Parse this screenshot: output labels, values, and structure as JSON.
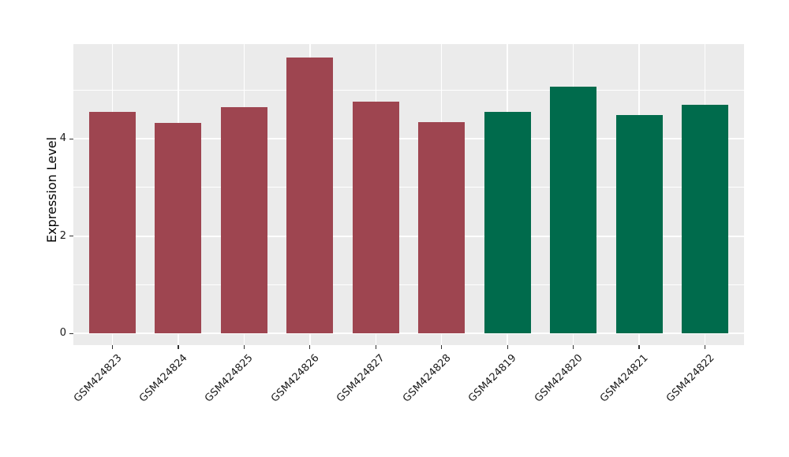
{
  "chart_data": {
    "type": "bar",
    "title": "",
    "xlabel": "",
    "ylabel": "Expression Level",
    "categories": [
      "GSM424823",
      "GSM424824",
      "GSM424825",
      "GSM424826",
      "GSM424827",
      "GSM424828",
      "GSM424819",
      "GSM424820",
      "GSM424821",
      "GSM424822"
    ],
    "values": [
      4.55,
      4.32,
      4.65,
      5.67,
      4.76,
      4.34,
      4.55,
      5.07,
      4.49,
      4.7
    ],
    "bar_colors": [
      "#9e4550",
      "#9e4550",
      "#9e4550",
      "#9e4550",
      "#9e4550",
      "#9e4550",
      "#006b4c",
      "#006b4c",
      "#006b4c",
      "#006b4c"
    ],
    "groups": [
      {
        "color": "#9e4550",
        "members": [
          "GSM424823",
          "GSM424824",
          "GSM424825",
          "GSM424826",
          "GSM424827",
          "GSM424828"
        ]
      },
      {
        "color": "#006b4c",
        "members": [
          "GSM424819",
          "GSM424820",
          "GSM424821",
          "GSM424822"
        ]
      }
    ],
    "yticks": [
      0,
      2,
      4
    ],
    "yticks_minor": [
      1,
      3,
      5
    ],
    "ylim": [
      0,
      5.94
    ],
    "x_tick_rotation": -45,
    "legend": "none",
    "grid": "on",
    "panel_background": "#ebebeb",
    "grid_color": "#ffffff",
    "figure_background": "#ffffff",
    "tick_color": "#333333",
    "text_color": "#1a1a1a"
  }
}
